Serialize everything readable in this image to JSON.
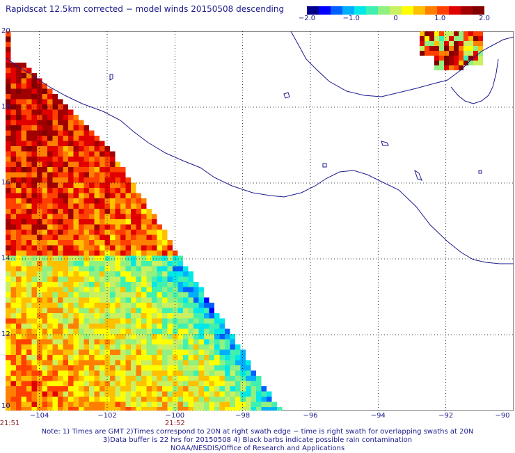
{
  "title": "Rapidscat 12.5km corrected − model winds 20150508 descending",
  "colorbar": {
    "ticks": [
      "−2.0",
      "−1.0",
      "0",
      "1.0",
      "2.0"
    ],
    "tick_values": [
      -2.0,
      -1.0,
      0,
      1.0,
      2.0
    ],
    "range": [
      -2.0,
      2.0
    ],
    "colors": [
      "#00008b",
      "#0000ff",
      "#0060ff",
      "#00b0ff",
      "#00e8e8",
      "#40f0b0",
      "#90f080",
      "#c8f060",
      "#ffff00",
      "#ffc000",
      "#ff8000",
      "#ff4000",
      "#e00000",
      "#a00000",
      "#800000"
    ]
  },
  "map": {
    "lat_range": [
      10,
      20
    ],
    "lon_range": [
      -105,
      -90
    ],
    "lat_ticks": [
      "10",
      "12",
      "14",
      "16",
      "18",
      "20"
    ],
    "lat_tick_values": [
      10,
      12,
      14,
      16,
      18,
      20
    ],
    "lon_ticks": [
      "−104",
      "−102",
      "−100",
      "−98",
      "−96",
      "−94",
      "−92",
      "−90"
    ],
    "lon_tick_values": [
      -104,
      -102,
      -100,
      -98,
      -96,
      -94,
      -92,
      -90
    ],
    "grid": true,
    "coastline_color": "#1a1a8c"
  },
  "times": [
    {
      "label": "21:51",
      "lon": -105
    },
    {
      "label": "21:52",
      "lon": -100
    }
  ],
  "notes": [
    "Note: 1) Times are GMT 2)Times correspond to 20N at right swath edge − time is right swath for overlapping swaths at 20N",
    "3)Data buffer is 22 hrs for 20150508 4) Black barbs indicate possible rain contamination",
    "NOAA/NESDIS/Office of Research and Applications"
  ]
}
